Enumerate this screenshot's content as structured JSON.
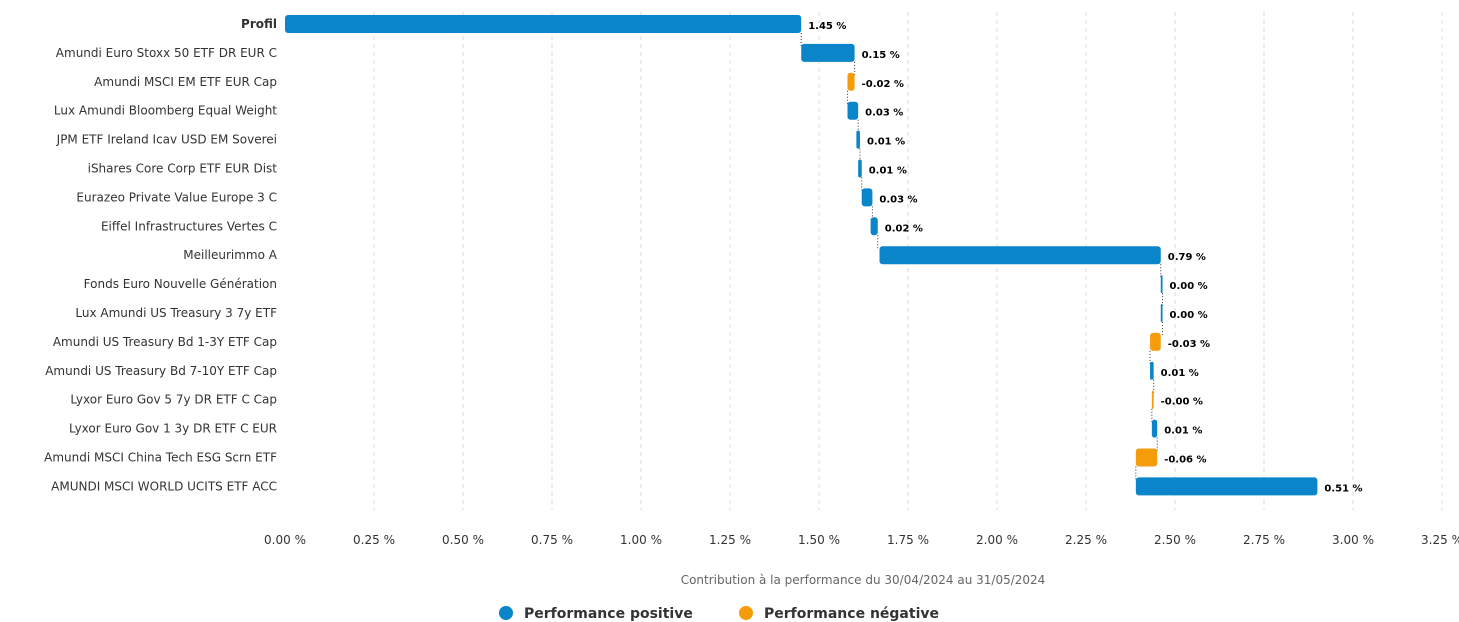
{
  "chart_data": {
    "type": "bar",
    "orientation": "horizontal-waterfall",
    "categories": [
      "Profil",
      "Amundi Euro Stoxx 50 ETF DR EUR C",
      "Amundi MSCI EM ETF EUR Cap",
      "Lux Amundi Bloomberg Equal Weight",
      "JPM ETF Ireland Icav USD EM Soverei",
      "iShares Core Corp ETF EUR Dist",
      "Eurazeo Private Value Europe 3 C",
      "Eiffel Infrastructures Vertes C",
      "Meilleurimmo A",
      "Fonds Euro Nouvelle Génération",
      "Lux Amundi US Treasury 3 7y ETF",
      "Amundi US Treasury Bd 1-3Y ETF Cap",
      "Amundi US Treasury Bd 7-10Y ETF Cap",
      "Lyxor Euro Gov 5 7y DR ETF C Cap",
      "Lyxor Euro Gov 1 3y DR ETF C EUR",
      "Amundi MSCI China Tech ESG Scrn ETF",
      "AMUNDI MSCI WORLD UCITS ETF ACC"
    ],
    "values": [
      1.45,
      0.15,
      -0.02,
      0.03,
      0.01,
      0.01,
      0.03,
      0.02,
      0.79,
      0.0,
      0.0,
      -0.03,
      0.01,
      -0.0,
      0.01,
      -0.06,
      0.51
    ],
    "value_labels": [
      "1.45 %",
      "0.15 %",
      "-0.02 %",
      "0.03 %",
      "0.01 %",
      "0.01 %",
      "0.03 %",
      "0.02 %",
      "0.79 %",
      "0.00 %",
      "0.00 %",
      "-0.03 %",
      "0.01 %",
      "-0.00 %",
      "0.01 %",
      "-0.06 %",
      "0.51 %"
    ],
    "bar_ranges": [
      [
        0.0,
        1.45
      ],
      [
        1.45,
        1.6
      ],
      [
        1.58,
        1.6
      ],
      [
        1.58,
        1.61
      ],
      [
        1.605,
        1.615
      ],
      [
        1.61,
        1.62
      ],
      [
        1.62,
        1.65
      ],
      [
        1.645,
        1.665
      ],
      [
        1.67,
        2.46
      ],
      [
        2.46,
        2.465
      ],
      [
        2.46,
        2.465
      ],
      [
        2.43,
        2.46
      ],
      [
        2.43,
        2.44
      ],
      [
        2.435,
        2.44
      ],
      [
        2.435,
        2.45
      ],
      [
        2.39,
        2.45
      ],
      [
        2.39,
        2.9
      ]
    ],
    "xlim": [
      0,
      3.25
    ],
    "xticks": [
      0,
      0.25,
      0.5,
      0.75,
      1.0,
      1.25,
      1.5,
      1.75,
      2.0,
      2.25,
      2.5,
      2.75,
      3.0,
      3.25
    ],
    "xtick_labels": [
      "0.00 %",
      "0.25 %",
      "0.50 %",
      "0.75 %",
      "1.00 %",
      "1.25 %",
      "1.50 %",
      "1.75 %",
      "2.00 %",
      "2.25 %",
      "2.50 %",
      "2.75 %",
      "3.00 %",
      "3.25 %"
    ],
    "xlabel": "Contribution à la performance du 30/04/2024 au 31/05/2024",
    "grid": true,
    "legend": {
      "placement": "bottom-center",
      "items": [
        {
          "label": "Performance positive",
          "color": "#0a85c9"
        },
        {
          "label": "Performance négative",
          "color": "#f59c0b"
        }
      ]
    },
    "colors": {
      "positive": "#0a85c9",
      "negative": "#f59c0b"
    }
  }
}
